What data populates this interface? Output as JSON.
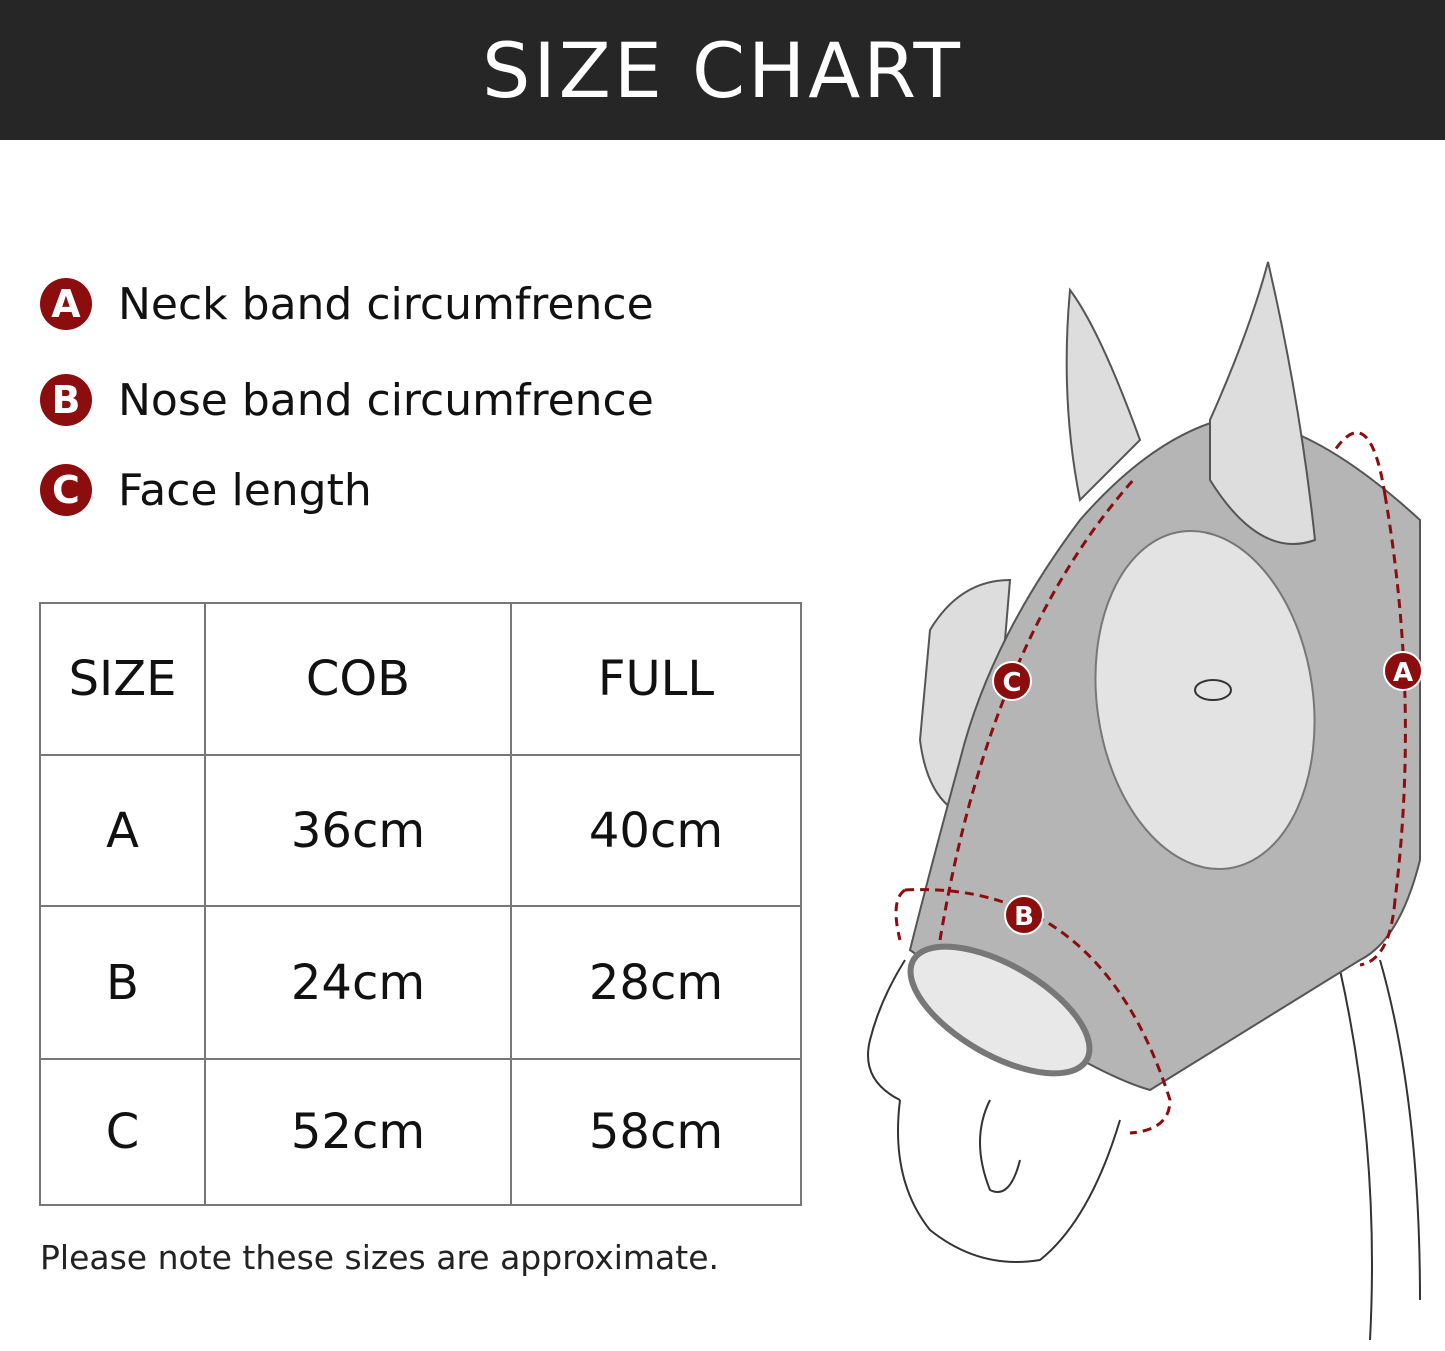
{
  "header": {
    "title": "SIZE CHART"
  },
  "legend": [
    {
      "marker": "A",
      "label": "Neck band circumfrence"
    },
    {
      "marker": "B",
      "label": "Nose band circumfrence"
    },
    {
      "marker": "C",
      "label": "Face length"
    }
  ],
  "table": {
    "headers": [
      "SIZE",
      "COB",
      "FULL"
    ],
    "rows": [
      [
        "A",
        "36cm",
        "40cm"
      ],
      [
        "B",
        "24cm",
        "28cm"
      ],
      [
        "C",
        "52cm",
        "58cm"
      ]
    ]
  },
  "note": "Please note these sizes are approximate.",
  "colors": {
    "accent": "#8b0d0d",
    "banner": "#262626",
    "mask": "#b5b5b5"
  },
  "diagram": {
    "markers": [
      "A",
      "B",
      "C"
    ]
  }
}
